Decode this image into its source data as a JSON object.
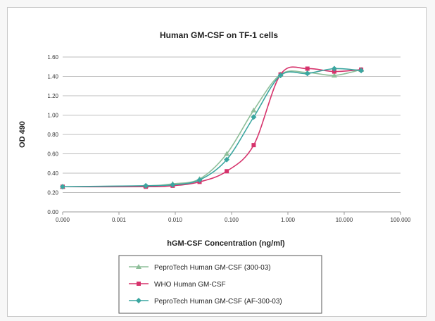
{
  "chart_data": {
    "type": "line",
    "title": "Human GM-CSF on TF-1 cells",
    "xlabel": "hGM-CSF Concentration (ng/ml)",
    "ylabel": "OD 490",
    "x_scale": "log",
    "x_tick_labels": [
      "0.000",
      "0.001",
      "0.010",
      "0.100",
      "1.000",
      "10.000",
      "100.000"
    ],
    "x_ticks": [
      0.0001,
      0.001,
      0.01,
      0.1,
      1,
      10,
      100
    ],
    "xlim": [
      0.0001,
      100
    ],
    "ylim": [
      0,
      1.6
    ],
    "y_ticks": [
      0,
      0.2,
      0.4,
      0.6,
      0.8,
      1.0,
      1.2,
      1.4,
      1.6
    ],
    "y_tick_labels": [
      "0.00",
      "0.20",
      "0.40",
      "0.60",
      "0.80",
      "1.00",
      "1.20",
      "1.40",
      "1.60"
    ],
    "grid": true,
    "legend_position": "bottom",
    "series": [
      {
        "name": "PeproTech Human GM-CSF (300-03)",
        "color": "#8fbf9a",
        "marker": "triangle",
        "x": [
          0.0001,
          0.003,
          0.009,
          0.027,
          0.082,
          0.247,
          0.741,
          2.22,
          6.67,
          20
        ],
        "y": [
          0.26,
          0.27,
          0.29,
          0.34,
          0.6,
          1.05,
          1.42,
          1.44,
          1.41,
          1.47
        ]
      },
      {
        "name": "WHO Human GM-CSF",
        "color": "#d6336c",
        "marker": "square",
        "x": [
          0.0001,
          0.003,
          0.009,
          0.027,
          0.082,
          0.247,
          0.741,
          2.22,
          6.67,
          20
        ],
        "y": [
          0.26,
          0.26,
          0.27,
          0.31,
          0.42,
          0.69,
          1.42,
          1.48,
          1.45,
          1.47
        ]
      },
      {
        "name": "PeproTech Human GM-CSF (AF-300-03)",
        "color": "#3aa6a0",
        "marker": "diamond",
        "x": [
          0.0001,
          0.003,
          0.009,
          0.027,
          0.082,
          0.247,
          0.741,
          2.22,
          6.67,
          20
        ],
        "y": [
          0.26,
          0.27,
          0.28,
          0.33,
          0.54,
          0.98,
          1.41,
          1.43,
          1.48,
          1.46
        ]
      }
    ]
  }
}
